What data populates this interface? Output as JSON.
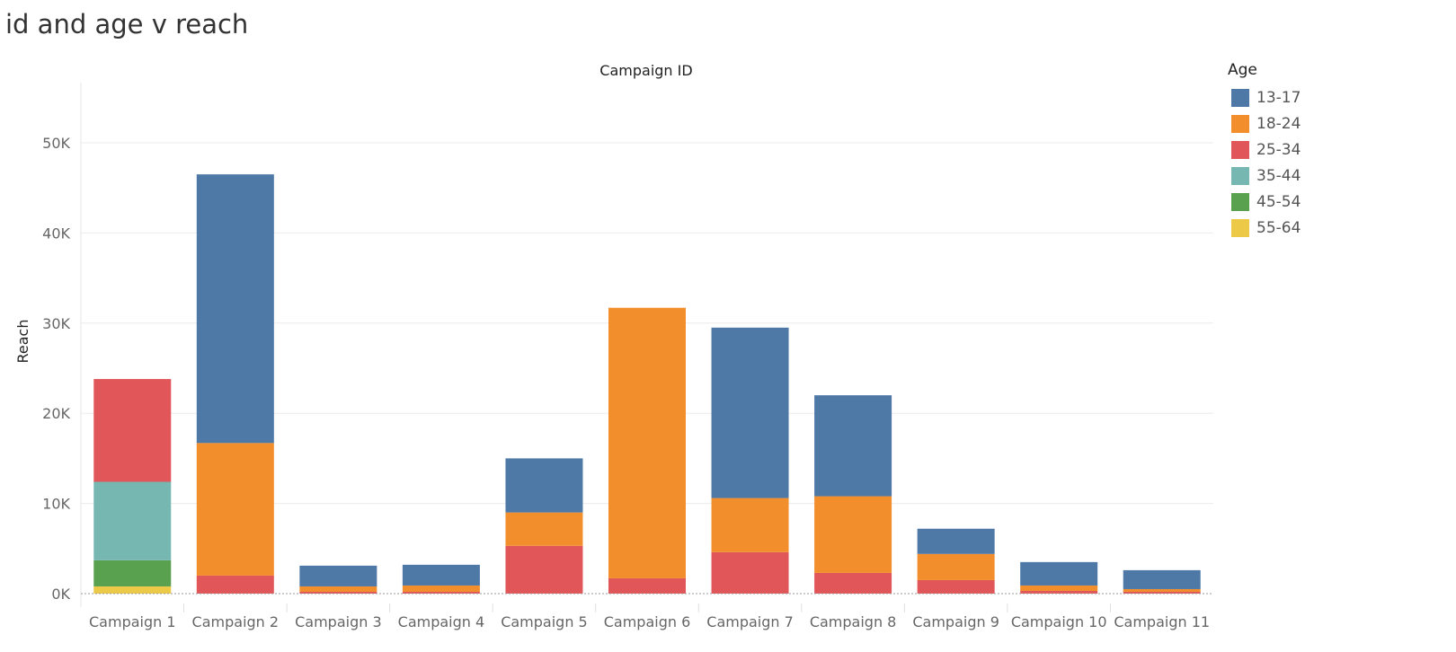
{
  "title": "id and age v reach",
  "chart_data": {
    "type": "bar",
    "stacked": true,
    "title": "",
    "xlabel": "Campaign ID",
    "ylabel": "Reach",
    "ylim": [
      0,
      56000
    ],
    "yticks": [
      0,
      10000,
      20000,
      30000,
      40000,
      50000
    ],
    "ytick_labels": [
      "0K",
      "10K",
      "20K",
      "30K",
      "40K",
      "50K"
    ],
    "grid": true,
    "legend": {
      "title": "Age",
      "placement": "right"
    },
    "categories": [
      "Campaign 1",
      "Campaign 2",
      "Campaign 3",
      "Campaign 4",
      "Campaign 5",
      "Campaign 6",
      "Campaign 7",
      "Campaign 8",
      "Campaign 9",
      "Campaign 10",
      "Campaign 11"
    ],
    "series": [
      {
        "name": "55-64",
        "color": "#EDC948",
        "values": [
          800,
          0,
          0,
          0,
          0,
          0,
          0,
          0,
          0,
          0,
          0
        ]
      },
      {
        "name": "45-54",
        "color": "#59A14F",
        "values": [
          2900,
          0,
          0,
          0,
          0,
          0,
          0,
          0,
          0,
          0,
          0
        ]
      },
      {
        "name": "35-44",
        "color": "#76B7B2",
        "values": [
          8700,
          0,
          0,
          0,
          0,
          0,
          0,
          0,
          0,
          0,
          0
        ]
      },
      {
        "name": "25-34",
        "color": "#E15759",
        "values": [
          11400,
          2000,
          200,
          200,
          5300,
          1700,
          4600,
          2300,
          1500,
          300,
          200
        ]
      },
      {
        "name": "18-24",
        "color": "#F28E2B",
        "values": [
          0,
          14700,
          600,
          700,
          3700,
          30000,
          6000,
          8500,
          2900,
          600,
          300
        ]
      },
      {
        "name": "13-17",
        "color": "#4E79A7",
        "values": [
          0,
          29800,
          2300,
          2300,
          6000,
          0,
          18900,
          11200,
          2800,
          2600,
          2100
        ]
      }
    ]
  },
  "legend_items": [
    {
      "label": "13-17",
      "color": "#4E79A7"
    },
    {
      "label": "18-24",
      "color": "#F28E2B"
    },
    {
      "label": "25-34",
      "color": "#E15759"
    },
    {
      "label": "35-44",
      "color": "#76B7B2"
    },
    {
      "label": "45-54",
      "color": "#59A14F"
    },
    {
      "label": "55-64",
      "color": "#EDC948"
    }
  ]
}
